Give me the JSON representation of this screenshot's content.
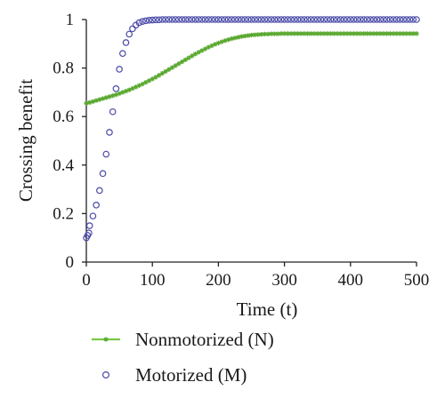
{
  "chart_data": {
    "type": "line",
    "xlabel": "Time (t)",
    "ylabel": "Crossing benefit",
    "xlim": [
      0,
      500
    ],
    "ylim": [
      0,
      1
    ],
    "xticks": [
      0,
      100,
      200,
      300,
      400,
      500
    ],
    "yticks": [
      0,
      0.2,
      0.4,
      0.6,
      0.8,
      1
    ],
    "ytick_labels": [
      "0",
      "0.2",
      "0.4",
      "0.6",
      "0.8",
      "1"
    ],
    "grid": false,
    "legend_position": "bottom",
    "series": [
      {
        "name": "Nonmotorized (N)",
        "style": "line-with-star-markers",
        "color": "#7ac943",
        "x": [
          0,
          5,
          10,
          15,
          20,
          25,
          30,
          35,
          40,
          45,
          50,
          55,
          60,
          65,
          70,
          75,
          80,
          85,
          90,
          95,
          100,
          105,
          110,
          115,
          120,
          125,
          130,
          135,
          140,
          145,
          150,
          155,
          160,
          165,
          170,
          175,
          180,
          185,
          190,
          195,
          200,
          205,
          210,
          215,
          220,
          225,
          230,
          235,
          240,
          245,
          250,
          255,
          260,
          265,
          270,
          275,
          280,
          285,
          290,
          295,
          300,
          305,
          310,
          315,
          320,
          325,
          330,
          335,
          340,
          345,
          350,
          355,
          360,
          365,
          370,
          375,
          380,
          385,
          390,
          395,
          400,
          405,
          410,
          415,
          420,
          425,
          430,
          435,
          440,
          445,
          450,
          455,
          460,
          465,
          470,
          475,
          480,
          485,
          490,
          495,
          500
        ],
        "y": [
          0.655,
          0.658,
          0.662,
          0.666,
          0.67,
          0.674,
          0.678,
          0.682,
          0.686,
          0.69,
          0.695,
          0.7,
          0.705,
          0.71,
          0.716,
          0.722,
          0.728,
          0.734,
          0.741,
          0.748,
          0.755,
          0.762,
          0.77,
          0.778,
          0.786,
          0.794,
          0.802,
          0.81,
          0.818,
          0.826,
          0.834,
          0.842,
          0.85,
          0.858,
          0.865,
          0.872,
          0.879,
          0.886,
          0.892,
          0.898,
          0.903,
          0.908,
          0.913,
          0.917,
          0.921,
          0.924,
          0.927,
          0.93,
          0.932,
          0.934,
          0.936,
          0.937,
          0.938,
          0.939,
          0.94,
          0.94,
          0.941,
          0.941,
          0.941,
          0.942,
          0.942,
          0.942,
          0.942,
          0.942,
          0.942,
          0.942,
          0.942,
          0.942,
          0.942,
          0.942,
          0.942,
          0.942,
          0.942,
          0.942,
          0.942,
          0.942,
          0.942,
          0.942,
          0.942,
          0.942,
          0.942,
          0.942,
          0.942,
          0.942,
          0.942,
          0.942,
          0.942,
          0.942,
          0.942,
          0.942,
          0.942,
          0.942,
          0.942,
          0.942,
          0.942,
          0.942,
          0.942,
          0.942,
          0.942,
          0.942,
          0.942
        ]
      },
      {
        "name": "Motorized (M)",
        "style": "hollow-circle-markers",
        "color": "#4a4aa8",
        "x": [
          0,
          2,
          4,
          5,
          10,
          15,
          20,
          25,
          30,
          35,
          40,
          45,
          50,
          55,
          60,
          65,
          70,
          75,
          80,
          85,
          90,
          95,
          100,
          105,
          110,
          115,
          120,
          125,
          130,
          135,
          140,
          145,
          150,
          155,
          160,
          165,
          170,
          175,
          180,
          185,
          190,
          195,
          200,
          205,
          210,
          215,
          220,
          225,
          230,
          235,
          240,
          245,
          250,
          255,
          260,
          265,
          270,
          275,
          280,
          285,
          290,
          295,
          300,
          305,
          310,
          315,
          320,
          325,
          330,
          335,
          340,
          345,
          350,
          355,
          360,
          365,
          370,
          375,
          380,
          385,
          390,
          395,
          400,
          405,
          410,
          415,
          420,
          425,
          430,
          435,
          440,
          445,
          450,
          455,
          460,
          465,
          470,
          475,
          480,
          485,
          490,
          495,
          500
        ],
        "y": [
          0.1,
          0.11,
          0.12,
          0.15,
          0.19,
          0.235,
          0.295,
          0.365,
          0.445,
          0.535,
          0.62,
          0.715,
          0.795,
          0.86,
          0.905,
          0.94,
          0.962,
          0.977,
          0.987,
          0.992,
          0.995,
          0.997,
          0.998,
          0.999,
          0.999,
          1.0,
          1.0,
          1.0,
          1.0,
          1.0,
          1.0,
          1.0,
          1.0,
          1.0,
          1.0,
          1.0,
          1.0,
          1.0,
          1.0,
          1.0,
          1.0,
          1.0,
          1.0,
          1.0,
          1.0,
          1.0,
          1.0,
          1.0,
          1.0,
          1.0,
          1.0,
          1.0,
          1.0,
          1.0,
          1.0,
          1.0,
          1.0,
          1.0,
          1.0,
          1.0,
          1.0,
          1.0,
          1.0,
          1.0,
          1.0,
          1.0,
          1.0,
          1.0,
          1.0,
          1.0,
          1.0,
          1.0,
          1.0,
          1.0,
          1.0,
          1.0,
          1.0,
          1.0,
          1.0,
          1.0,
          1.0,
          1.0,
          1.0,
          1.0,
          1.0,
          1.0,
          1.0,
          1.0,
          1.0,
          1.0,
          1.0,
          1.0,
          1.0,
          1.0,
          1.0,
          1.0,
          1.0,
          1.0,
          1.0,
          1.0,
          1.0,
          1.0,
          1.0
        ]
      }
    ]
  }
}
